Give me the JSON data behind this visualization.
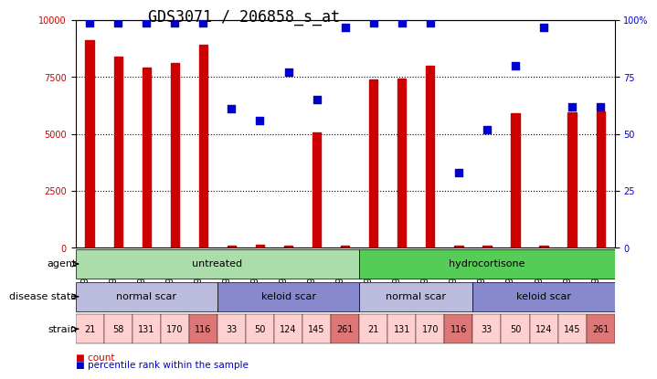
{
  "title": "GDS3071 / 206858_s_at",
  "samples": [
    "GSM194118",
    "GSM194120",
    "GSM194122",
    "GSM194119",
    "GSM194121",
    "GSM194112",
    "GSM194113",
    "GSM194111",
    "GSM194109",
    "GSM194110",
    "GSM194117",
    "GSM194115",
    "GSM194116",
    "GSM194114",
    "GSM194104",
    "GSM194105",
    "GSM194108",
    "GSM194106",
    "GSM194107"
  ],
  "counts": [
    9100,
    8400,
    7900,
    8100,
    8900,
    100,
    150,
    100,
    5050,
    100,
    7400,
    7450,
    8000,
    100,
    100,
    5900,
    100,
    5950,
    6000
  ],
  "percentiles": [
    99,
    99,
    99,
    99,
    99,
    61,
    56,
    77,
    65,
    97,
    99,
    99,
    99,
    33,
    52,
    80,
    97,
    62,
    62
  ],
  "ylim_left": [
    0,
    10000
  ],
  "ylim_right": [
    0,
    100
  ],
  "yticks_left": [
    0,
    2500,
    5000,
    7500,
    10000
  ],
  "yticks_right": [
    0,
    25,
    50,
    75,
    100
  ],
  "bar_color": "#cc0000",
  "dot_color": "#0000cc",
  "agent_groups": [
    {
      "label": "untreated",
      "start": 0,
      "end": 10,
      "color": "#aaddaa"
    },
    {
      "label": "hydrocortisone",
      "start": 10,
      "end": 19,
      "color": "#55cc55"
    }
  ],
  "disease_groups": [
    {
      "label": "normal scar",
      "start": 0,
      "end": 5,
      "color": "#bbbbdd"
    },
    {
      "label": "keloid scar",
      "start": 5,
      "end": 10,
      "color": "#8888cc"
    },
    {
      "label": "normal scar",
      "start": 10,
      "end": 14,
      "color": "#bbbbdd"
    },
    {
      "label": "keloid scar",
      "start": 14,
      "end": 19,
      "color": "#8888cc"
    }
  ],
  "strain_values": [
    "21",
    "58",
    "131",
    "170",
    "116",
    "33",
    "50",
    "124",
    "145",
    "261",
    "21",
    "131",
    "170",
    "116",
    "33",
    "50",
    "124",
    "145",
    "261"
  ],
  "strain_colors": [
    "#ffd0d0",
    "#ffd0d0",
    "#ffd0d0",
    "#ffd0d0",
    "#dd7777",
    "#ffd0d0",
    "#ffd0d0",
    "#ffd0d0",
    "#ffd0d0",
    "#dd7777",
    "#ffd0d0",
    "#ffd0d0",
    "#ffd0d0",
    "#dd7777",
    "#ffd0d0",
    "#ffd0d0",
    "#ffd0d0",
    "#ffd0d0",
    "#dd7777"
  ],
  "legend_bar_color": "#cc0000",
  "legend_dot_color": "#0000cc",
  "grid_color": "#000000",
  "title_fontsize": 12,
  "tick_fontsize": 7,
  "label_fontsize": 8
}
